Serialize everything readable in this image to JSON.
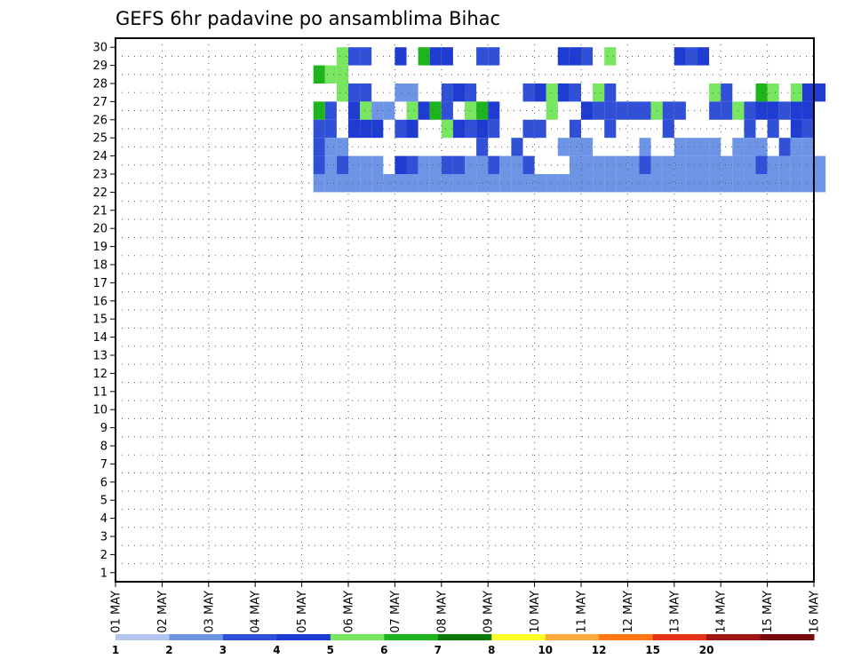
{
  "chart_data": {
    "type": "heatmap",
    "title": "GEFS 6hr padavine po ansamblima Bihac",
    "x_tick_labels": [
      "01 MAY",
      "02 MAY",
      "03 MAY",
      "04 MAY",
      "05 MAY",
      "06 MAY",
      "07 MAY",
      "08 MAY",
      "09 MAY",
      "10 MAY",
      "11 MAY",
      "12 MAY",
      "13 MAY",
      "14 MAY",
      "15 MAY",
      "16 MAY"
    ],
    "y_range": [
      0,
      30
    ],
    "y_tick_labels": [
      "1",
      "2",
      "3",
      "4",
      "5",
      "6",
      "7",
      "8",
      "9",
      "10",
      "11",
      "12",
      "13",
      "14",
      "15",
      "16",
      "17",
      "18",
      "19",
      "20",
      "21",
      "22",
      "23",
      "24",
      "25",
      "26",
      "27",
      "28",
      "29",
      "30"
    ],
    "x_steps_per_day": 4,
    "grid": true,
    "colorbar": {
      "position": "bottom",
      "labels": [
        "1",
        "2",
        "3",
        "4",
        "5",
        "6",
        "7",
        "8",
        "10",
        "12",
        "15",
        "20"
      ],
      "colors": [
        "#b4c6f0",
        "#6e94e6",
        "#3050d8",
        "#1e3cd2",
        "#78e660",
        "#1eb41e",
        "#0a7a0a",
        "#ffff28",
        "#ffaa3c",
        "#ff7814",
        "#e63214",
        "#a01414",
        "#780a0a"
      ]
    },
    "cells": [
      [
        19,
        29,
        4
      ],
      [
        20,
        29,
        2
      ],
      [
        21,
        29,
        2
      ],
      [
        24,
        29,
        3
      ],
      [
        26,
        29,
        5
      ],
      [
        27,
        29,
        3
      ],
      [
        28,
        29,
        3
      ],
      [
        31,
        29,
        2
      ],
      [
        32,
        29,
        2
      ],
      [
        38,
        29,
        3
      ],
      [
        39,
        29,
        3
      ],
      [
        40,
        29,
        2
      ],
      [
        42,
        29,
        4
      ],
      [
        48,
        29,
        3
      ],
      [
        49,
        29,
        2
      ],
      [
        50,
        29,
        3
      ],
      [
        17,
        28,
        5
      ],
      [
        18,
        28,
        4
      ],
      [
        19,
        28,
        4
      ],
      [
        19,
        27,
        4
      ],
      [
        20,
        27,
        2
      ],
      [
        21,
        27,
        2
      ],
      [
        24,
        27,
        1
      ],
      [
        25,
        27,
        1
      ],
      [
        28,
        27,
        2
      ],
      [
        29,
        27,
        3
      ],
      [
        30,
        27,
        2
      ],
      [
        35,
        27,
        2
      ],
      [
        36,
        27,
        3
      ],
      [
        37,
        27,
        4
      ],
      [
        38,
        27,
        3
      ],
      [
        39,
        27,
        2
      ],
      [
        41,
        27,
        4
      ],
      [
        42,
        27,
        2
      ],
      [
        51,
        27,
        4
      ],
      [
        52,
        27,
        2
      ],
      [
        55,
        27,
        5
      ],
      [
        56,
        27,
        4
      ],
      [
        58,
        27,
        4
      ],
      [
        59,
        27,
        3
      ],
      [
        60,
        27,
        3
      ],
      [
        17,
        26,
        5
      ],
      [
        18,
        26,
        2
      ],
      [
        20,
        26,
        3
      ],
      [
        21,
        26,
        4
      ],
      [
        22,
        26,
        1
      ],
      [
        23,
        26,
        1
      ],
      [
        25,
        26,
        4
      ],
      [
        26,
        26,
        3
      ],
      [
        27,
        26,
        5
      ],
      [
        28,
        26,
        2
      ],
      [
        30,
        26,
        4
      ],
      [
        31,
        26,
        5
      ],
      [
        32,
        26,
        3
      ],
      [
        37,
        26,
        4
      ],
      [
        40,
        26,
        3
      ],
      [
        41,
        26,
        2
      ],
      [
        42,
        26,
        2
      ],
      [
        43,
        26,
        2
      ],
      [
        44,
        26,
        2
      ],
      [
        45,
        26,
        2
      ],
      [
        46,
        26,
        4
      ],
      [
        47,
        26,
        2
      ],
      [
        48,
        26,
        2
      ],
      [
        51,
        26,
        2
      ],
      [
        52,
        26,
        2
      ],
      [
        53,
        26,
        4
      ],
      [
        54,
        26,
        2
      ],
      [
        55,
        26,
        3
      ],
      [
        56,
        26,
        3
      ],
      [
        57,
        26,
        2
      ],
      [
        58,
        26,
        3
      ],
      [
        59,
        26,
        3
      ],
      [
        17,
        25,
        2
      ],
      [
        18,
        25,
        2
      ],
      [
        20,
        25,
        3
      ],
      [
        21,
        25,
        3
      ],
      [
        22,
        25,
        3
      ],
      [
        24,
        25,
        2
      ],
      [
        25,
        25,
        3
      ],
      [
        28,
        25,
        4
      ],
      [
        29,
        25,
        3
      ],
      [
        30,
        25,
        2
      ],
      [
        31,
        25,
        3
      ],
      [
        32,
        25,
        2
      ],
      [
        35,
        25,
        2
      ],
      [
        36,
        25,
        2
      ],
      [
        39,
        25,
        2
      ],
      [
        42,
        25,
        2
      ],
      [
        47,
        25,
        2
      ],
      [
        54,
        25,
        2
      ],
      [
        56,
        25,
        2
      ],
      [
        58,
        25,
        3
      ],
      [
        59,
        25,
        2
      ],
      [
        17,
        24,
        2
      ],
      [
        18,
        24,
        1
      ],
      [
        19,
        24,
        1
      ],
      [
        31,
        24,
        2
      ],
      [
        34,
        24,
        2
      ],
      [
        38,
        24,
        1
      ],
      [
        39,
        24,
        1
      ],
      [
        40,
        24,
        1
      ],
      [
        45,
        24,
        1
      ],
      [
        48,
        24,
        1
      ],
      [
        49,
        24,
        1
      ],
      [
        50,
        24,
        1
      ],
      [
        51,
        24,
        1
      ],
      [
        53,
        24,
        1
      ],
      [
        54,
        24,
        1
      ],
      [
        55,
        24,
        1
      ],
      [
        57,
        24,
        2
      ],
      [
        58,
        24,
        1
      ],
      [
        59,
        24,
        1
      ],
      [
        17,
        23,
        2
      ],
      [
        18,
        23,
        1
      ],
      [
        19,
        23,
        2
      ],
      [
        20,
        23,
        1
      ],
      [
        21,
        23,
        1
      ],
      [
        22,
        23,
        1
      ],
      [
        24,
        23,
        3
      ],
      [
        25,
        23,
        2
      ],
      [
        26,
        23,
        1
      ],
      [
        27,
        23,
        1
      ],
      [
        28,
        23,
        2
      ],
      [
        29,
        23,
        2
      ],
      [
        30,
        23,
        1
      ],
      [
        31,
        23,
        1
      ],
      [
        32,
        23,
        2
      ],
      [
        33,
        23,
        1
      ],
      [
        34,
        23,
        1
      ],
      [
        35,
        23,
        2
      ],
      [
        39,
        23,
        1
      ],
      [
        40,
        23,
        1
      ],
      [
        41,
        23,
        1
      ],
      [
        42,
        23,
        1
      ],
      [
        43,
        23,
        1
      ],
      [
        44,
        23,
        1
      ],
      [
        45,
        23,
        2
      ],
      [
        46,
        23,
        1
      ],
      [
        47,
        23,
        1
      ],
      [
        48,
        23,
        1
      ],
      [
        49,
        23,
        1
      ],
      [
        50,
        23,
        1
      ],
      [
        51,
        23,
        1
      ],
      [
        52,
        23,
        1
      ],
      [
        53,
        23,
        1
      ],
      [
        54,
        23,
        1
      ],
      [
        55,
        23,
        2
      ],
      [
        56,
        23,
        1
      ],
      [
        57,
        23,
        1
      ],
      [
        58,
        23,
        1
      ],
      [
        59,
        23,
        1
      ],
      [
        60,
        23,
        1
      ],
      [
        17,
        22,
        1
      ],
      [
        18,
        22,
        1
      ],
      [
        19,
        22,
        1
      ],
      [
        20,
        22,
        1
      ],
      [
        21,
        22,
        1
      ],
      [
        22,
        22,
        1
      ],
      [
        23,
        22,
        1
      ],
      [
        24,
        22,
        1
      ],
      [
        25,
        22,
        1
      ],
      [
        26,
        22,
        1
      ],
      [
        27,
        22,
        1
      ],
      [
        28,
        22,
        1
      ],
      [
        29,
        22,
        1
      ],
      [
        30,
        22,
        1
      ],
      [
        31,
        22,
        1
      ],
      [
        32,
        22,
        1
      ],
      [
        33,
        22,
        1
      ],
      [
        34,
        22,
        1
      ],
      [
        35,
        22,
        1
      ],
      [
        36,
        22,
        1
      ],
      [
        37,
        22,
        1
      ],
      [
        38,
        22,
        1
      ],
      [
        39,
        22,
        1
      ],
      [
        40,
        22,
        1
      ],
      [
        41,
        22,
        1
      ],
      [
        42,
        22,
        1
      ],
      [
        43,
        22,
        1
      ],
      [
        44,
        22,
        1
      ],
      [
        45,
        22,
        1
      ],
      [
        46,
        22,
        1
      ],
      [
        47,
        22,
        1
      ],
      [
        48,
        22,
        1
      ],
      [
        49,
        22,
        1
      ],
      [
        50,
        22,
        1
      ],
      [
        51,
        22,
        1
      ],
      [
        52,
        22,
        1
      ],
      [
        53,
        22,
        1
      ],
      [
        54,
        22,
        1
      ],
      [
        55,
        22,
        1
      ],
      [
        56,
        22,
        1
      ],
      [
        57,
        22,
        1
      ],
      [
        58,
        22,
        1
      ],
      [
        59,
        22,
        1
      ],
      [
        60,
        22,
        1
      ]
    ]
  }
}
